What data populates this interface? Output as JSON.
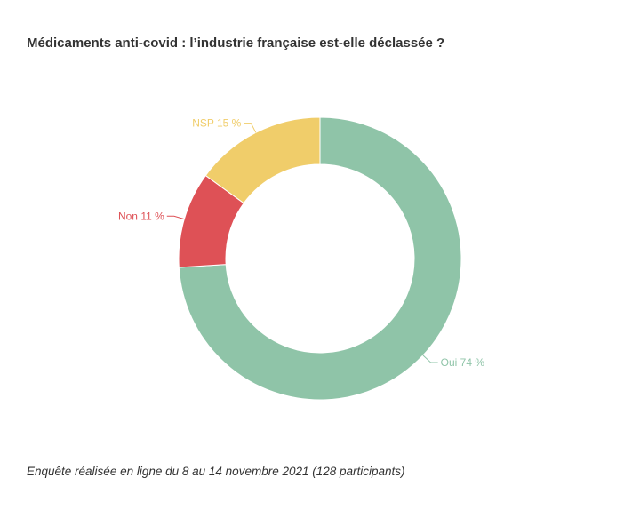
{
  "chart_data": {
    "type": "pie",
    "title": "Médicaments anti-covid : l’industrie française est-elle déclassée ?",
    "caption": "Enquête réalisée en ligne du 8 au 14 novembre 2021 (128 participants)",
    "donut": true,
    "slices": [
      {
        "label": "Oui",
        "value": 74,
        "display": "Oui 74 %",
        "color": "#8fc4a8"
      },
      {
        "label": "Non",
        "value": 11,
        "display": "Non 11 %",
        "color": "#de5156"
      },
      {
        "label": "NSP",
        "value": 15,
        "display": "NSP 15 %",
        "color": "#f0cd6a"
      }
    ]
  }
}
